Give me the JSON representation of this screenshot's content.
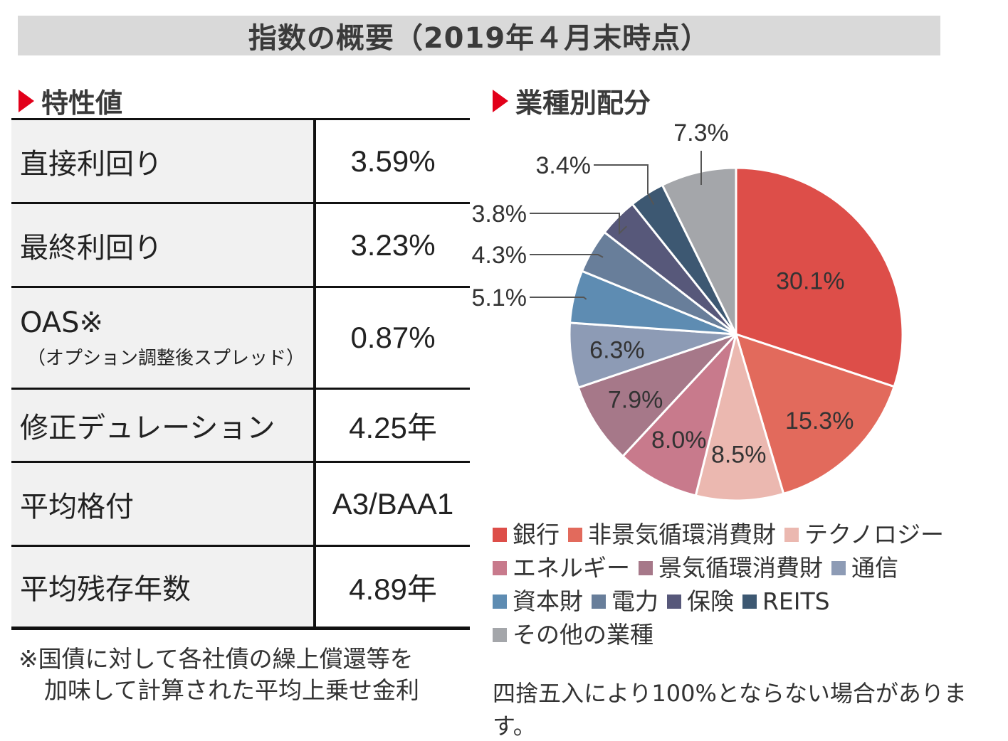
{
  "banner_title": "指数の概要（2019年４月末時点）",
  "left_section_title": "特性値",
  "right_section_title": "業種別配分",
  "properties": [
    {
      "label": "直接利回り",
      "sub": "",
      "value": "3.59%"
    },
    {
      "label": "最終利回り",
      "sub": "",
      "value": "3.23%"
    },
    {
      "label": "OAS※",
      "sub": "（オプション調整後スプレッド）",
      "value": "0.87%"
    },
    {
      "label": "修正デュレーション",
      "sub": "",
      "value": "4.25年"
    },
    {
      "label": "平均格付",
      "sub": "",
      "value": "A3/BAA1"
    },
    {
      "label": "平均残存年数",
      "sub": "",
      "value": "4.89年"
    }
  ],
  "note_line1": "※国債に対して各社債の繰上償還等を",
  "note_line2": "加味して計算された平均上乗せ金利",
  "footnote": "四捨五入により100%とならない場合があります。",
  "chart_data": {
    "type": "pie",
    "title": "業種別配分",
    "legend_position": "bottom",
    "slices": [
      {
        "name": "銀行",
        "value": 30.1,
        "label": "30.1%",
        "color": "#dd4e49"
      },
      {
        "name": "非景気循環消費財",
        "value": 15.3,
        "label": "15.3%",
        "color": "#e26a5c"
      },
      {
        "name": "テクノロジー",
        "value": 8.5,
        "label": "8.5%",
        "color": "#ebb8b0"
      },
      {
        "name": "エネルギー",
        "value": 8.0,
        "label": "8.0%",
        "color": "#c87a8c"
      },
      {
        "name": "景気循環消費財",
        "value": 7.9,
        "label": "7.9%",
        "color": "#a67889"
      },
      {
        "name": "通信",
        "value": 6.3,
        "label": "6.3%",
        "color": "#8d9bb5"
      },
      {
        "name": "資本財",
        "value": 5.1,
        "label": "5.1%",
        "color": "#5e8cb2"
      },
      {
        "name": "電力",
        "value": 4.3,
        "label": "4.3%",
        "color": "#687e9a"
      },
      {
        "name": "保険",
        "value": 3.8,
        "label": "3.8%",
        "color": "#57587a"
      },
      {
        "name": "REITS",
        "value": 3.4,
        "label": "3.4%",
        "color": "#3d5872"
      },
      {
        "name": "その他の業種",
        "value": 7.3,
        "label": "7.3%",
        "color": "#a4a6aa"
      }
    ]
  }
}
